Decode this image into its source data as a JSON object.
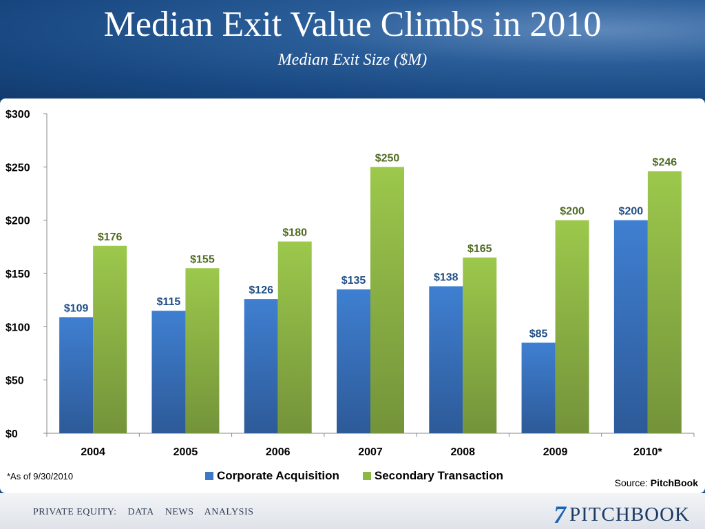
{
  "header": {
    "title": "Median Exit Value Climbs in 2010",
    "subtitle": "Median Exit Size ($M)"
  },
  "chart_data": {
    "type": "bar",
    "categories": [
      "2004",
      "2005",
      "2006",
      "2007",
      "2008",
      "2009",
      "2010*"
    ],
    "series": [
      {
        "name": "Corporate Acquisition",
        "values": [
          109,
          115,
          126,
          135,
          138,
          85,
          200
        ],
        "color": "#3b78c7"
      },
      {
        "name": "Secondary Transaction",
        "values": [
          176,
          155,
          180,
          250,
          165,
          200,
          246
        ],
        "color": "#8db843"
      }
    ],
    "data_labels": [
      [
        "$109",
        "$115",
        "$126",
        "$135",
        "$138",
        "$85",
        "$200"
      ],
      [
        "$176",
        "$155",
        "$180",
        "$250",
        "$165",
        "$200",
        "$246"
      ]
    ],
    "label_colors": [
      "#1f4e85",
      "#4f6b22"
    ],
    "ylim": [
      0,
      300
    ],
    "yticks": [
      0,
      50,
      100,
      150,
      200,
      250,
      300
    ],
    "ytick_labels": [
      "$0",
      "$50",
      "$100",
      "$150",
      "$200",
      "$250",
      "$300"
    ],
    "xlabel": "",
    "ylabel": "",
    "grid": false,
    "legend": "bottom"
  },
  "footnote": "*As of 9/30/2010",
  "source": {
    "label": "Source: ",
    "name": "PitchBook"
  },
  "footer": {
    "tagline": [
      "PRIVATE EQUITY:",
      "DATA",
      "NEWS",
      "ANALYSIS"
    ],
    "logo_mark": "7",
    "logo_text": "PITCHBOOK"
  }
}
